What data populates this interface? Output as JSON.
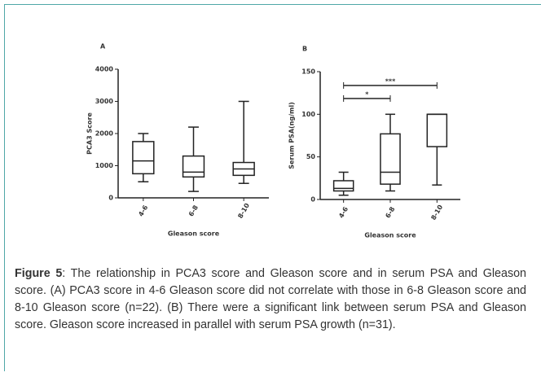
{
  "chart_data": [
    {
      "type": "box",
      "panel": "A",
      "ylabel": "PCA3 Score",
      "xlabel": "Gleason score",
      "categories": [
        "4-6",
        "6-8",
        "8-10"
      ],
      "boxes": [
        {
          "min": 500,
          "q1": 750,
          "median": 1150,
          "q3": 1750,
          "max": 2000
        },
        {
          "min": 200,
          "q1": 650,
          "median": 800,
          "q3": 1300,
          "max": 2200
        },
        {
          "min": 450,
          "q1": 700,
          "median": 900,
          "q3": 1100,
          "max": 3000
        }
      ],
      "ylim": [
        0,
        4000
      ],
      "yticks": [
        0,
        1000,
        2000,
        3000,
        4000
      ],
      "color": "#222222"
    },
    {
      "type": "box",
      "panel": "B",
      "ylabel": "Serum PSA(ng/ml)",
      "xlabel": "Gleason score",
      "categories": [
        "4-6",
        "6-8",
        "8-10"
      ],
      "boxes": [
        {
          "min": 5,
          "q1": 10,
          "median": 13,
          "q3": 22,
          "max": 32
        },
        {
          "min": 10,
          "q1": 18,
          "median": 32,
          "q3": 77,
          "max": 100
        },
        {
          "min": 17,
          "q1": 62,
          "median": 100,
          "q3": 100,
          "max": 100
        }
      ],
      "annotations": [
        {
          "text": "*",
          "from": 0,
          "to": 1
        },
        {
          "text": "***",
          "from": 0,
          "to": 2
        }
      ],
      "ylim": [
        0,
        150
      ],
      "yticks": [
        0,
        50,
        100,
        150
      ],
      "color": "#222222"
    }
  ],
  "caption": {
    "label": "Figure 5",
    "text": ": The relationship in PCA3 score and Gleason score and in serum PSA and Gleason score. (A) PCA3 score in 4-6 Gleason score did not correlate with those in 6-8 Gleason score and 8-10 Gleason score (n=22). (B) There were a significant link between serum PSA and Gleason score. Gleason score increased in parallel with serum PSA growth (n=31)."
  }
}
